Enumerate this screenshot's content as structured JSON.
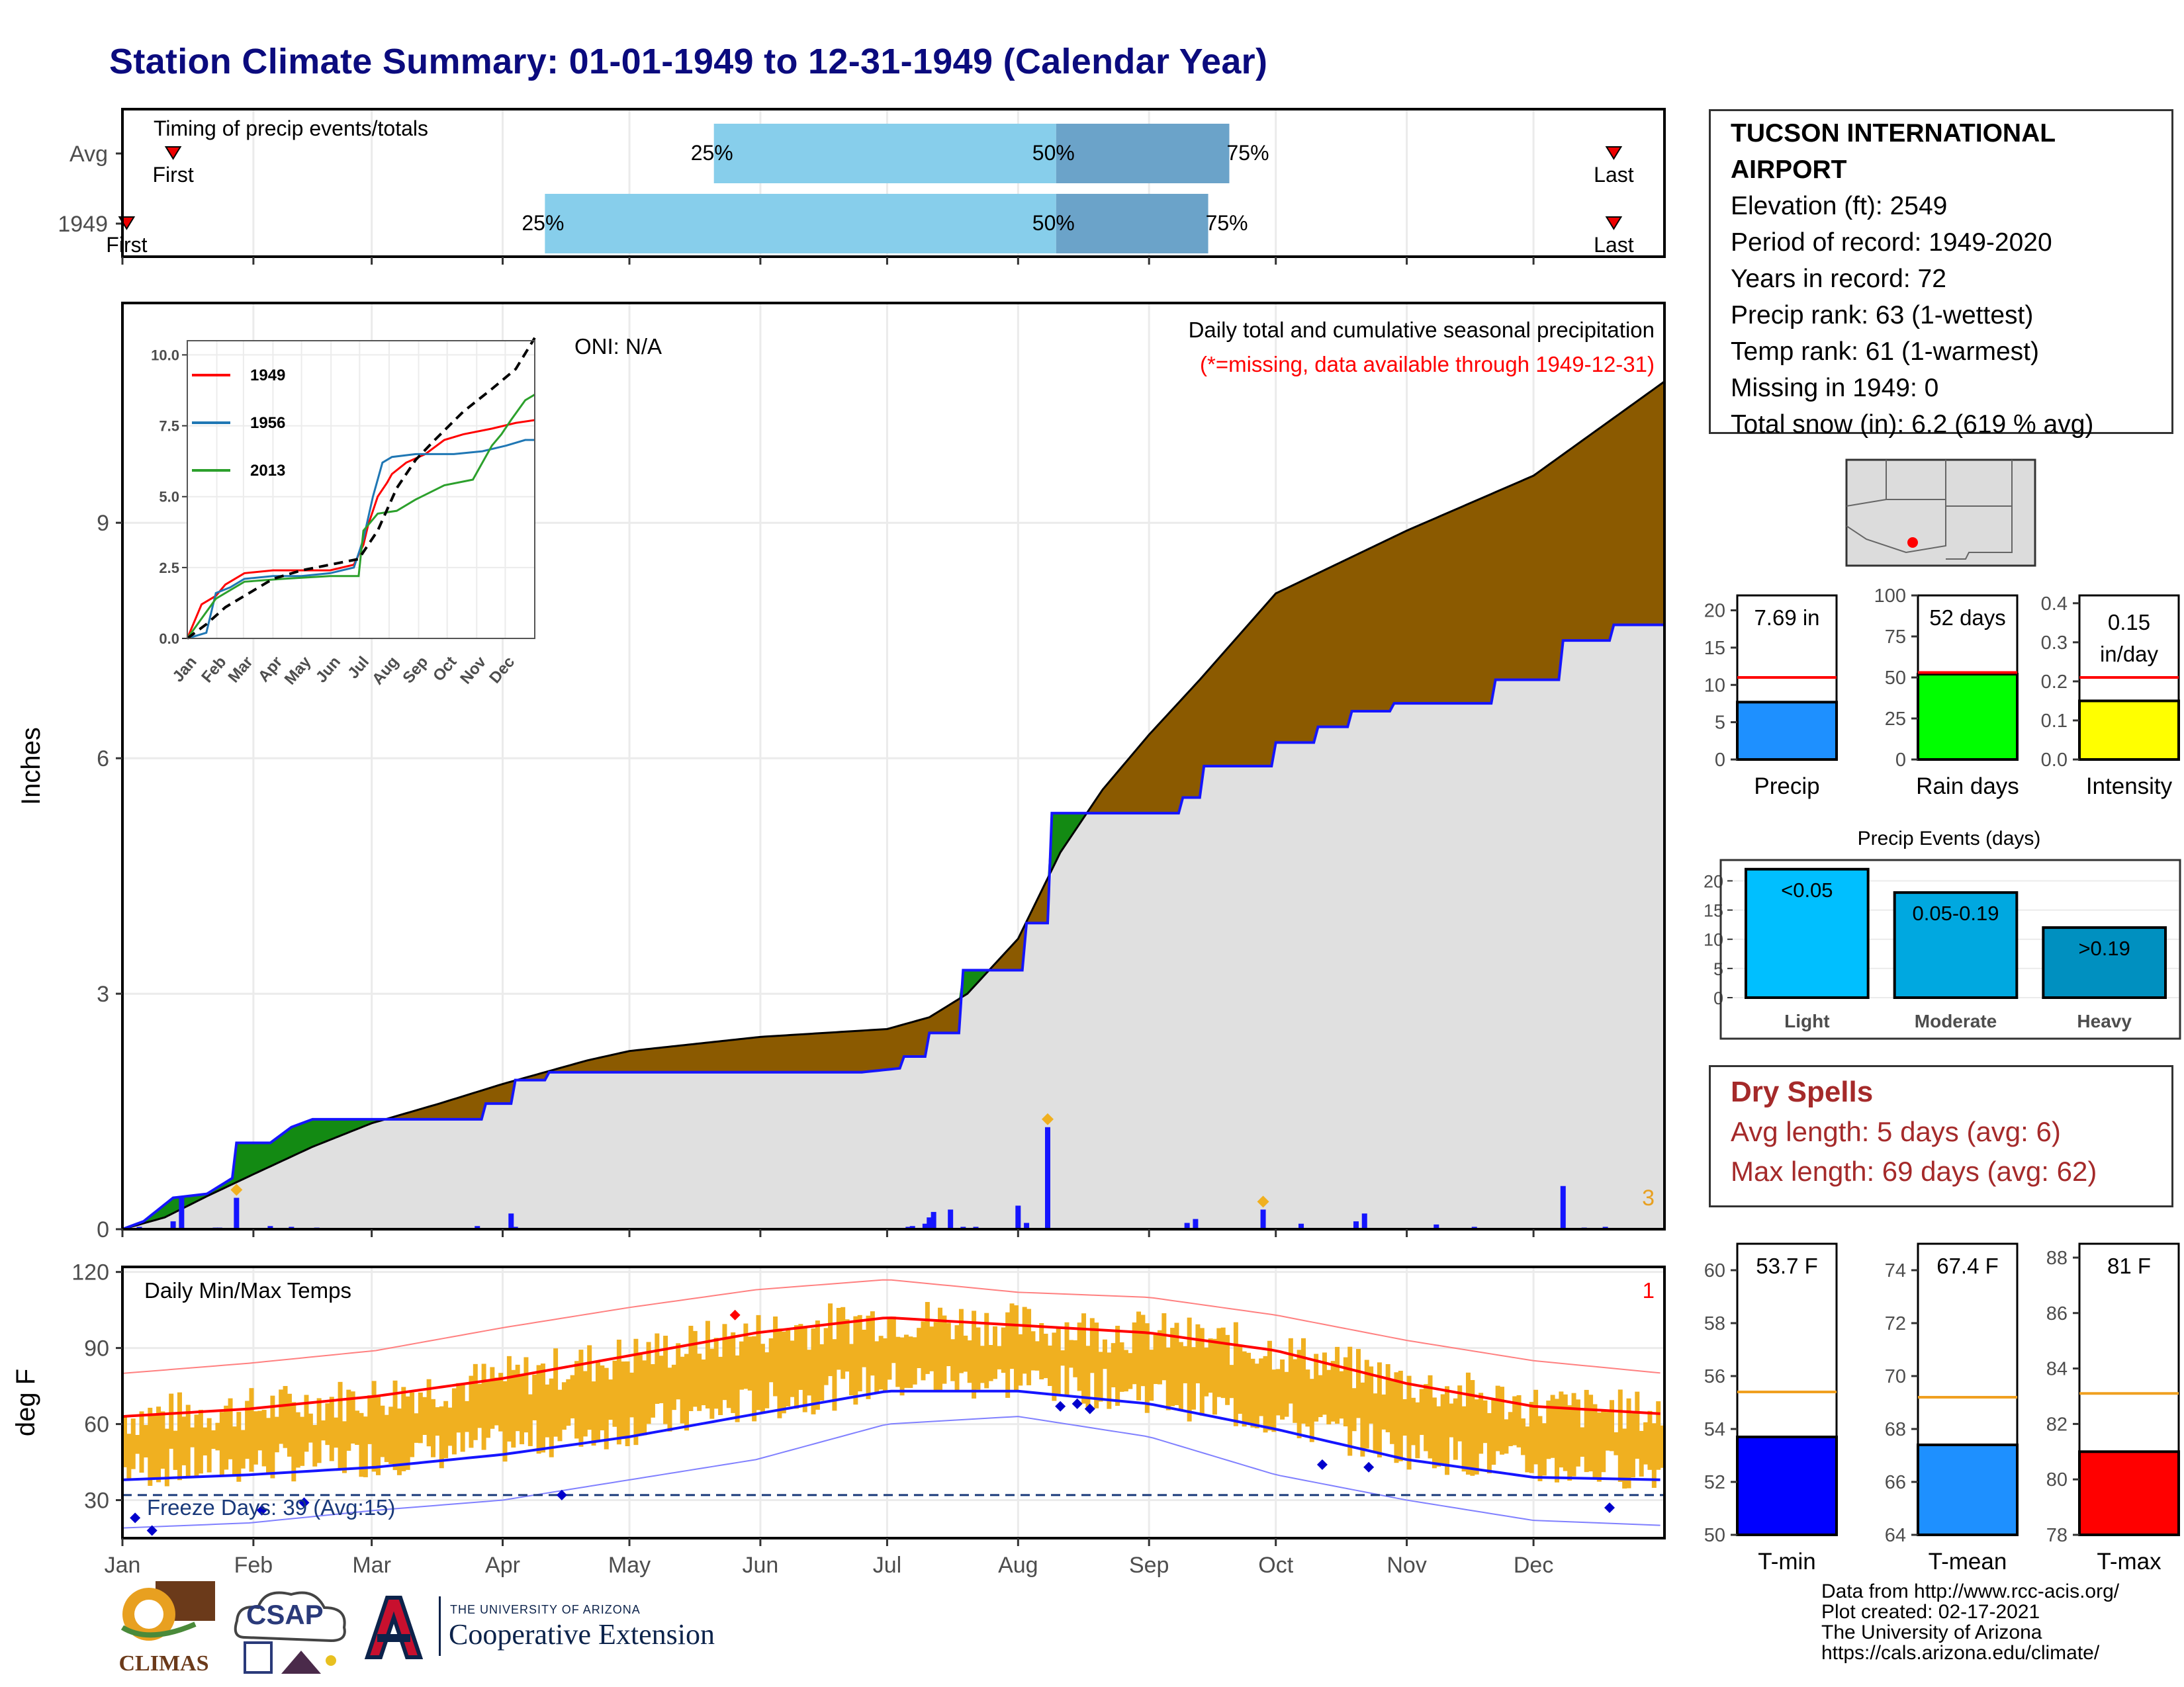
{
  "title": "Station Climate Summary: 01-01-1949 to 12-31-1949 (Calendar Year)",
  "station": {
    "name": "TUCSON INTERNATIONAL AIRPORT",
    "elevation": "Elevation (ft): 2549",
    "period": "Period of record: 1949-2020",
    "years": "Years in record: 72",
    "precip_rank": "Precip rank: 63 (1-wettest)",
    "temp_rank": "Temp rank: 61 (1-warmest)",
    "missing": "Missing in 1949: 0",
    "snow": "Total snow (in): 6.2 (619 % avg)"
  },
  "dry_spells": {
    "title": "Dry Spells",
    "avg": "Avg length: 5 days (avg: 6)",
    "max": "Max length: 69 days (avg: 62)"
  },
  "credits": [
    "Data from http://www.rcc-acis.org/",
    "Plot created: 02-17-2021",
    "The University of Arizona",
    "https://cals.arizona.edu/climate/"
  ],
  "logos": {
    "climas": "CLIMAS",
    "csap": "CSAP",
    "ua_small": "THE UNIVERSITY OF ARIZONA",
    "ua_big": "Cooperative Extension"
  },
  "colors": {
    "brown": "#8b5a00",
    "grey": "#e0e0e0",
    "blue": "#1515ff",
    "red": "#ff0000",
    "orange": "#f0b020",
    "lightblue": "#87ceeb",
    "midblue": "#6ba3c9",
    "green": "#138a13"
  },
  "chart_data": [
    {
      "type": "bar",
      "id": "timing",
      "title": "Timing of precip events/totals",
      "rows": [
        {
          "label": "Avg",
          "first": "First",
          "last": "Last",
          "first_day": 12,
          "p25": 140,
          "p50": 221,
          "p75": 262,
          "last_day": 353
        },
        {
          "label": "1949",
          "first": "First",
          "last": "Last",
          "first_day": 1,
          "p25": 100,
          "p50": 221,
          "p75": 257,
          "last_day": 353
        }
      ],
      "pct_labels": [
        "25%",
        "50%",
        "75%"
      ]
    },
    {
      "type": "area",
      "id": "precip",
      "title": "Daily total and cumulative seasonal precipitation",
      "subtitle": "(*=missing, data available through 1949-12-31)",
      "oni": "ONI: N/A",
      "ylabel": "Inches",
      "ylim": [
        0,
        11.8
      ],
      "yticks": [
        0,
        3,
        6,
        9
      ],
      "months": [
        "Jan",
        "Feb",
        "Mar",
        "Apr",
        "May",
        "Jun",
        "Jul",
        "Aug",
        "Sep",
        "Oct",
        "Nov",
        "Dec"
      ],
      "count_label": "3",
      "cum_avg": [
        [
          0,
          0
        ],
        [
          10,
          0.15
        ],
        [
          20,
          0.42
        ],
        [
          31,
          0.7
        ],
        [
          45,
          1.05
        ],
        [
          59,
          1.35
        ],
        [
          75,
          1.6
        ],
        [
          90,
          1.85
        ],
        [
          110,
          2.15
        ],
        [
          120,
          2.27
        ],
        [
          151,
          2.45
        ],
        [
          181,
          2.55
        ],
        [
          191,
          2.7
        ],
        [
          200,
          3.0
        ],
        [
          212,
          3.7
        ],
        [
          222,
          4.8
        ],
        [
          232,
          5.6
        ],
        [
          243,
          6.3
        ],
        [
          255,
          7.0
        ],
        [
          273,
          8.1
        ],
        [
          304,
          8.9
        ],
        [
          334,
          9.6
        ],
        [
          365,
          10.8
        ]
      ],
      "cum_1949": [
        [
          0,
          0
        ],
        [
          5,
          0.1
        ],
        [
          12,
          0.4
        ],
        [
          20,
          0.45
        ],
        [
          26,
          0.65
        ],
        [
          27,
          1.1
        ],
        [
          35,
          1.1
        ],
        [
          40,
          1.3
        ],
        [
          45,
          1.4
        ],
        [
          60,
          1.4
        ],
        [
          85,
          1.4
        ],
        [
          86,
          1.6
        ],
        [
          92,
          1.6
        ],
        [
          93,
          1.9
        ],
        [
          100,
          1.9
        ],
        [
          101,
          2.0
        ],
        [
          150,
          2.0
        ],
        [
          175,
          2.0
        ],
        [
          184,
          2.05
        ],
        [
          185,
          2.2
        ],
        [
          190,
          2.2
        ],
        [
          191,
          2.5
        ],
        [
          198,
          2.5
        ],
        [
          199,
          3.3
        ],
        [
          213,
          3.3
        ],
        [
          214,
          3.9
        ],
        [
          219,
          3.9
        ],
        [
          220,
          5.3
        ],
        [
          250,
          5.3
        ],
        [
          251,
          5.5
        ],
        [
          255,
          5.5
        ],
        [
          256,
          5.9
        ],
        [
          272,
          5.9
        ],
        [
          273,
          6.2
        ],
        [
          282,
          6.2
        ],
        [
          283,
          6.4
        ],
        [
          290,
          6.4
        ],
        [
          291,
          6.6
        ],
        [
          300,
          6.6
        ],
        [
          301,
          6.7
        ],
        [
          324,
          6.7
        ],
        [
          325,
          7.0
        ],
        [
          340,
          7.0
        ],
        [
          341,
          7.5
        ],
        [
          352,
          7.5
        ],
        [
          353,
          7.7
        ],
        [
          365,
          7.7
        ]
      ],
      "daily": [
        [
          4,
          0.03
        ],
        [
          12,
          0.1
        ],
        [
          14,
          0.4
        ],
        [
          22,
          0.02
        ],
        [
          23,
          0.02
        ],
        [
          27,
          0.4
        ],
        [
          35,
          0.04
        ],
        [
          40,
          0.03
        ],
        [
          46,
          0.02
        ],
        [
          84,
          0.04
        ],
        [
          92,
          0.2
        ],
        [
          93,
          0.03
        ],
        [
          186,
          0.03
        ],
        [
          187,
          0.04
        ],
        [
          190,
          0.07
        ],
        [
          191,
          0.15
        ],
        [
          192,
          0.22
        ],
        [
          196,
          0.25
        ],
        [
          199,
          0.03
        ],
        [
          202,
          0.03
        ],
        [
          212,
          0.3
        ],
        [
          214,
          0.08
        ],
        [
          219,
          1.3
        ],
        [
          252,
          0.08
        ],
        [
          254,
          0.13
        ],
        [
          270,
          0.25
        ],
        [
          279,
          0.07
        ],
        [
          292,
          0.1
        ],
        [
          294,
          0.2
        ],
        [
          311,
          0.06
        ],
        [
          320,
          0.03
        ],
        [
          341,
          0.55
        ],
        [
          346,
          0.02
        ],
        [
          351,
          0.03
        ]
      ]
    },
    {
      "type": "line",
      "id": "inset",
      "series": [
        {
          "name": "1949",
          "color": "#ff0000",
          "values": [
            [
              0,
              0
            ],
            [
              15,
              1.2
            ],
            [
              30,
              1.5
            ],
            [
              40,
              1.9
            ],
            [
              60,
              2.3
            ],
            [
              90,
              2.4
            ],
            [
              120,
              2.4
            ],
            [
              150,
              2.4
            ],
            [
              175,
              2.6
            ],
            [
              185,
              3.3
            ],
            [
              190,
              4.0
            ],
            [
              200,
              5.0
            ],
            [
              210,
              5.5
            ],
            [
              215,
              5.8
            ],
            [
              230,
              6.2
            ],
            [
              250,
              6.5
            ],
            [
              270,
              7.0
            ],
            [
              290,
              7.2
            ],
            [
              320,
              7.4
            ],
            [
              345,
              7.6
            ],
            [
              365,
              7.7
            ]
          ]
        },
        {
          "name": "1956",
          "color": "#1f77b4",
          "values": [
            [
              0,
              0
            ],
            [
              20,
              0.2
            ],
            [
              30,
              1.6
            ],
            [
              45,
              1.8
            ],
            [
              60,
              2.1
            ],
            [
              90,
              2.2
            ],
            [
              120,
              2.2
            ],
            [
              150,
              2.3
            ],
            [
              175,
              2.5
            ],
            [
              185,
              3.5
            ],
            [
              195,
              5.0
            ],
            [
              205,
              6.2
            ],
            [
              215,
              6.4
            ],
            [
              240,
              6.5
            ],
            [
              280,
              6.5
            ],
            [
              310,
              6.6
            ],
            [
              335,
              6.8
            ],
            [
              355,
              7.0
            ],
            [
              365,
              7.0
            ]
          ]
        },
        {
          "name": "2013",
          "color": "#2ca02c",
          "values": [
            [
              0,
              0
            ],
            [
              30,
              1.4
            ],
            [
              60,
              2.0
            ],
            [
              100,
              2.1
            ],
            [
              150,
              2.2
            ],
            [
              180,
              2.2
            ],
            [
              185,
              3.8
            ],
            [
              200,
              4.4
            ],
            [
              220,
              4.5
            ],
            [
              240,
              4.9
            ],
            [
              270,
              5.4
            ],
            [
              300,
              5.6
            ],
            [
              320,
              6.8
            ],
            [
              330,
              7.2
            ],
            [
              340,
              7.7
            ],
            [
              355,
              8.4
            ],
            [
              365,
              8.6
            ]
          ]
        },
        {
          "name": "",
          "color": "#000000",
          "dashed": true,
          "values": [
            [
              0,
              0
            ],
            [
              20,
              0.5
            ],
            [
              40,
              1.1
            ],
            [
              60,
              1.5
            ],
            [
              90,
              2.1
            ],
            [
              120,
              2.4
            ],
            [
              150,
              2.6
            ],
            [
              180,
              2.8
            ],
            [
              200,
              3.8
            ],
            [
              220,
              5.3
            ],
            [
              240,
              6.3
            ],
            [
              260,
              7.0
            ],
            [
              290,
              8.0
            ],
            [
              320,
              8.8
            ],
            [
              345,
              9.5
            ],
            [
              365,
              10.6
            ]
          ]
        }
      ],
      "ylim": [
        0,
        10.5
      ],
      "yticks": [
        "0.0",
        "2.5",
        "5.0",
        "7.5",
        "10.0"
      ],
      "months": [
        "Jan",
        "Feb",
        "Mar",
        "Apr",
        "May",
        "Jun",
        "Jul",
        "Aug",
        "Sep",
        "Oct",
        "Nov",
        "Dec"
      ]
    },
    {
      "type": "bar",
      "id": "precip_total",
      "value_label": "7.69 in",
      "xlabel": "Precip",
      "value": 7.69,
      "avg": 11.0,
      "ylim": [
        0,
        22
      ],
      "yticks": [
        0,
        5,
        10,
        15,
        20
      ],
      "color": "#1e90ff"
    },
    {
      "type": "bar",
      "id": "rain_days",
      "value_label": "52 days",
      "xlabel": "Rain days",
      "value": 52,
      "avg": 53,
      "ylim": [
        0,
        100
      ],
      "yticks": [
        0,
        25,
        50,
        75,
        100
      ],
      "color": "#00ff00"
    },
    {
      "type": "bar",
      "id": "intensity",
      "value_label": "0.15 in/day",
      "xlabel": "Intensity",
      "value": 0.15,
      "avg": 0.21,
      "ylim": [
        0,
        0.42
      ],
      "yticks": [
        "0.0",
        "0.1",
        "0.2",
        "0.3",
        "0.4"
      ],
      "color": "#ffff00"
    },
    {
      "type": "bar",
      "id": "events",
      "title": "Precip Events (days)",
      "categories": [
        "Light",
        "Moderate",
        "Heavy"
      ],
      "bar_labels": [
        "<0.05",
        "0.05-0.19",
        ">0.19"
      ],
      "values": [
        22,
        18,
        12
      ],
      "colors": [
        "#00bfff",
        "#00a8e0",
        "#0090c0"
      ],
      "ylim": [
        0,
        23
      ],
      "yticks": [
        0,
        5,
        10,
        15,
        20
      ]
    },
    {
      "type": "line",
      "id": "temps",
      "title": "Daily Min/Max Temps",
      "ylabel": "deg F",
      "ylim": [
        15,
        122
      ],
      "yticks": [
        30,
        60,
        90,
        120
      ],
      "freeze_label": "Freeze Days: 39 (Avg:15)",
      "count_label": "1",
      "months": [
        "Jan",
        "Feb",
        "Mar",
        "Apr",
        "May",
        "Jun",
        "Jul",
        "Aug",
        "Sep",
        "Oct",
        "Nov",
        "Dec"
      ],
      "avg_max": [
        [
          0,
          63
        ],
        [
          30,
          66
        ],
        [
          60,
          71
        ],
        [
          90,
          78
        ],
        [
          120,
          87
        ],
        [
          150,
          96
        ],
        [
          181,
          102
        ],
        [
          212,
          99
        ],
        [
          243,
          96
        ],
        [
          273,
          89
        ],
        [
          304,
          76
        ],
        [
          334,
          67
        ],
        [
          365,
          64
        ]
      ],
      "avg_min": [
        [
          0,
          38
        ],
        [
          30,
          40
        ],
        [
          60,
          43
        ],
        [
          90,
          48
        ],
        [
          120,
          55
        ],
        [
          150,
          64
        ],
        [
          181,
          73
        ],
        [
          212,
          73
        ],
        [
          243,
          68
        ],
        [
          273,
          58
        ],
        [
          304,
          46
        ],
        [
          334,
          39
        ],
        [
          365,
          38
        ]
      ],
      "rec_max": [
        [
          0,
          80
        ],
        [
          30,
          84
        ],
        [
          60,
          89
        ],
        [
          90,
          98
        ],
        [
          120,
          106
        ],
        [
          150,
          113
        ],
        [
          181,
          117
        ],
        [
          212,
          112
        ],
        [
          243,
          110
        ],
        [
          273,
          103
        ],
        [
          304,
          93
        ],
        [
          334,
          85
        ],
        [
          365,
          80
        ]
      ],
      "rec_min": [
        [
          0,
          19
        ],
        [
          30,
          21
        ],
        [
          60,
          26
        ],
        [
          90,
          30
        ],
        [
          120,
          38
        ],
        [
          150,
          46
        ],
        [
          181,
          60
        ],
        [
          212,
          63
        ],
        [
          243,
          55
        ],
        [
          273,
          40
        ],
        [
          304,
          30
        ],
        [
          334,
          22
        ],
        [
          365,
          20
        ]
      ]
    },
    {
      "type": "bar",
      "id": "tmin",
      "value_label": "53.7 F",
      "xlabel": "T-min",
      "value": 53.7,
      "avg": 55.4,
      "ylim": [
        50,
        61
      ],
      "yticks": [
        50,
        52,
        54,
        56,
        58,
        60
      ],
      "color": "#0000ff"
    },
    {
      "type": "bar",
      "id": "tmean",
      "value_label": "67.4 F",
      "xlabel": "T-mean",
      "value": 67.4,
      "avg": 69.2,
      "ylim": [
        64,
        75
      ],
      "yticks": [
        64,
        66,
        68,
        70,
        72,
        74
      ],
      "color": "#1e90ff"
    },
    {
      "type": "bar",
      "id": "tmax",
      "value_label": "81 F",
      "xlabel": "T-max",
      "value": 81.0,
      "avg": 83.1,
      "ylim": [
        78,
        88.5
      ],
      "yticks": [
        78,
        80,
        82,
        84,
        86,
        88
      ],
      "color": "#ff0000"
    }
  ]
}
